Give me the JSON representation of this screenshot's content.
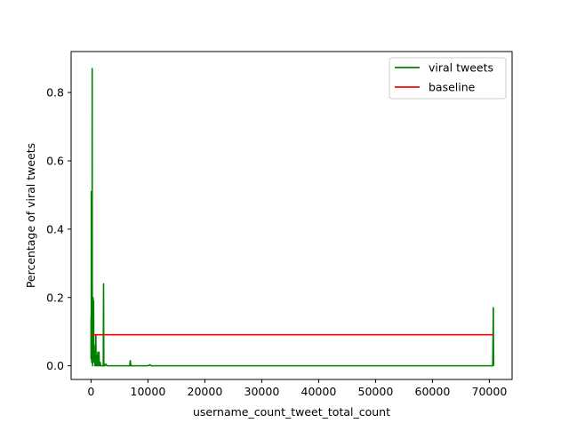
{
  "chart_data": {
    "type": "line",
    "xlabel": "username_count_tweet_total_count",
    "ylabel": "Percentage of viral tweets",
    "xlim": [
      -3500,
      74000
    ],
    "ylim": [
      -0.04,
      0.92
    ],
    "xticks": [
      0,
      10000,
      20000,
      30000,
      40000,
      50000,
      60000,
      70000
    ],
    "xtick_labels": [
      "0",
      "10000",
      "20000",
      "30000",
      "40000",
      "50000",
      "60000",
      "70000"
    ],
    "yticks": [
      0.0,
      0.2,
      0.4,
      0.6,
      0.8
    ],
    "ytick_labels": [
      "0.0",
      "0.2",
      "0.4",
      "0.6",
      "0.8"
    ],
    "grid": false,
    "legend_position": "top-right",
    "series": [
      {
        "name": "viral tweets",
        "color": "#008000",
        "x": [
          1,
          2,
          3,
          5,
          8,
          10,
          15,
          20,
          30,
          40,
          50,
          60,
          70,
          80,
          100,
          120,
          150,
          180,
          200,
          220,
          250,
          280,
          300,
          330,
          360,
          400,
          450,
          500,
          550,
          600,
          650,
          700,
          750,
          800,
          850,
          900,
          950,
          1000,
          1050,
          1100,
          1150,
          1200,
          1250,
          1300,
          1350,
          1400,
          1450,
          1500,
          1600,
          1700,
          1800,
          1900,
          2000,
          2100,
          2150,
          2200,
          2250,
          2300,
          2400,
          2600,
          2800,
          3000,
          4000,
          5000,
          6000,
          6800,
          6900,
          7000,
          7100,
          8000,
          10000,
          10400,
          10500,
          10600,
          12000,
          20000,
          30000,
          40000,
          50000,
          60000,
          70000,
          70600,
          70700,
          70750
        ],
        "y": [
          0.14,
          0.05,
          0.12,
          0.03,
          0.08,
          0.02,
          0.1,
          0.04,
          0.15,
          0.06,
          0.51,
          0.03,
          0.08,
          0.02,
          0.05,
          0.01,
          0.04,
          0.02,
          0.87,
          0.01,
          0.06,
          0.0,
          0.03,
          0.01,
          0.2,
          0.05,
          0.19,
          0.02,
          0.06,
          0.01,
          0.04,
          0.0,
          0.03,
          0.01,
          0.09,
          0.0,
          0.02,
          0.01,
          0.03,
          0.0,
          0.02,
          0.04,
          0.01,
          0.0,
          0.02,
          0.04,
          0.01,
          0.0,
          0.01,
          0.0,
          0.0,
          0.0,
          0.0,
          0.0,
          0.0,
          0.24,
          0.01,
          0.0,
          0.0,
          0.005,
          0.0,
          0.0,
          0.0,
          0.0,
          0.0,
          0.0,
          0.015,
          0.0,
          0.0,
          0.0,
          0.0,
          0.003,
          0.0,
          0.0,
          0.0,
          0.0,
          0.0,
          0.0,
          0.0,
          0.0,
          0.0,
          0.0,
          0.17,
          0.0
        ]
      },
      {
        "name": "baseline",
        "color": "#ff0000",
        "x": [
          1,
          70750
        ],
        "y": [
          0.091,
          0.091
        ]
      }
    ]
  }
}
